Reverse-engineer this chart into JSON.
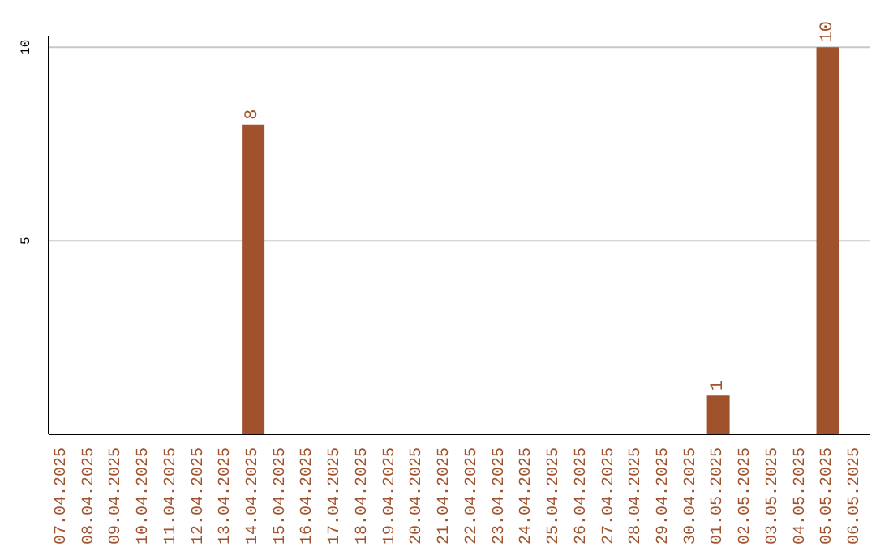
{
  "chart_data": {
    "type": "bar",
    "categories": [
      "07.04.2025",
      "08.04.2025",
      "09.04.2025",
      "10.04.2025",
      "11.04.2025",
      "12.04.2025",
      "13.04.2025",
      "14.04.2025",
      "15.04.2025",
      "16.04.2025",
      "17.04.2025",
      "18.04.2025",
      "19.04.2025",
      "20.04.2025",
      "21.04.2025",
      "22.04.2025",
      "23.04.2025",
      "24.04.2025",
      "25.04.2025",
      "26.04.2025",
      "27.04.2025",
      "28.04.2025",
      "29.04.2025",
      "30.04.2025",
      "01.05.2025",
      "02.05.2025",
      "03.05.2025",
      "04.05.2025",
      "05.05.2025",
      "06.05.2025"
    ],
    "values": [
      0,
      0,
      0,
      0,
      0,
      0,
      0,
      8,
      0,
      0,
      0,
      0,
      0,
      0,
      0,
      0,
      0,
      0,
      0,
      0,
      0,
      0,
      0,
      0,
      1,
      0,
      0,
      0,
      10,
      0
    ],
    "value_labels": [
      null,
      null,
      null,
      null,
      null,
      null,
      null,
      "8",
      null,
      null,
      null,
      null,
      null,
      null,
      null,
      null,
      null,
      null,
      null,
      null,
      null,
      null,
      null,
      null,
      "1",
      null,
      null,
      null,
      "10",
      null
    ],
    "color": "#a0522d",
    "ylim": [
      0,
      10.3
    ],
    "yticks": [
      5,
      10
    ],
    "grid": "y"
  }
}
